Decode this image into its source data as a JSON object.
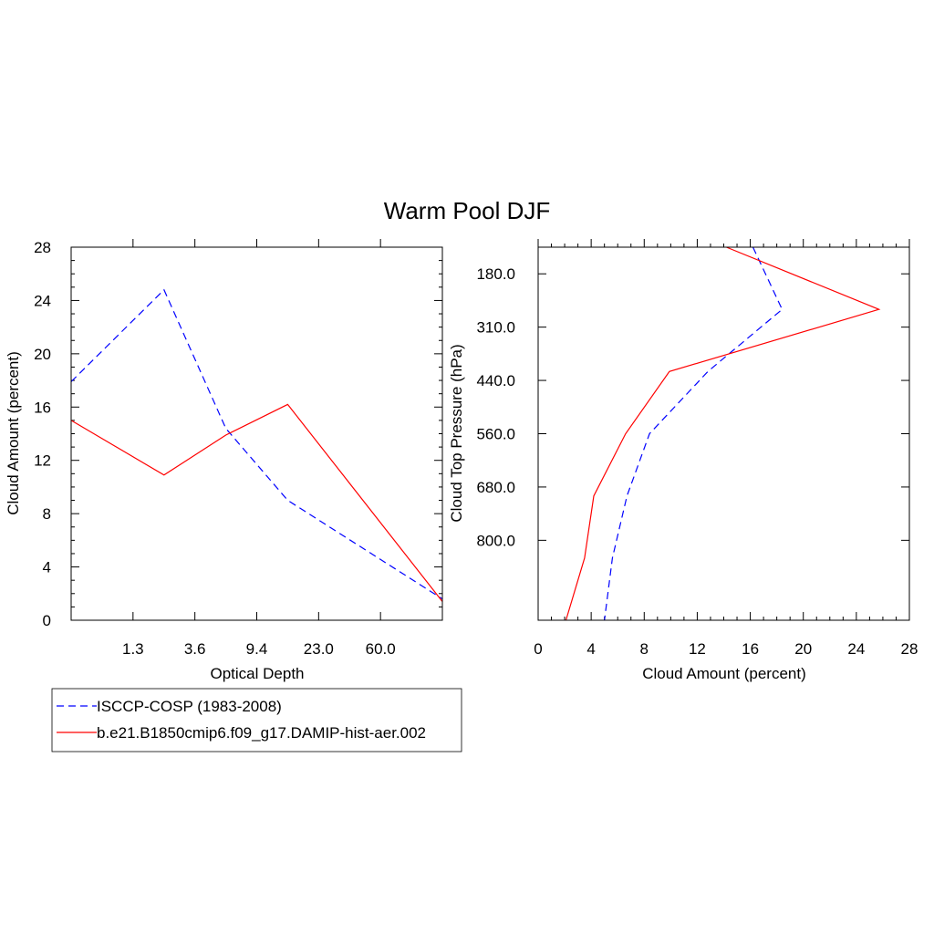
{
  "title": "Warm Pool DJF",
  "chart_data": [
    {
      "type": "line",
      "panel": "optical-depth",
      "xlabel": "Optical Depth",
      "ylabel": "Cloud Amount (percent)",
      "x_tick_labels": [
        "1.3",
        "3.6",
        "9.4",
        "23.0",
        "60.0"
      ],
      "y_ticks": [
        0,
        4,
        8,
        12,
        16,
        20,
        24,
        28
      ],
      "ylim": [
        0,
        28
      ],
      "x_points": [
        0.3,
        1.3,
        3.6,
        9.4,
        23.0,
        60.0,
        379
      ],
      "series": [
        {
          "name": "ISCCP-COSP (1983-2008)",
          "color": "#0000ff",
          "style": "dashed",
          "values": [
            17.9,
            24.8,
            14.4,
            9.0,
            1.6
          ]
        },
        {
          "name": "b.e21.B1850cmip6.f09_g17.DAMIP-hist-aer.002",
          "color": "#ff0000",
          "style": "solid",
          "values": [
            15.0,
            10.9,
            13.9,
            16.2,
            1.4
          ]
        }
      ]
    },
    {
      "type": "line",
      "panel": "cloud-top-pressure",
      "xlabel": "Cloud Amount (percent)",
      "ylabel": "Cloud Top Pressure (hPa)",
      "x_ticks": [
        0,
        4,
        8,
        12,
        16,
        20,
        24,
        28
      ],
      "xlim": [
        0,
        28
      ],
      "y_tick_labels": [
        "180.0",
        "310.0",
        "440.0",
        "560.0",
        "680.0",
        "800.0"
      ],
      "series": [
        {
          "name": "ISCCP-COSP (1983-2008)",
          "color": "#0000ff",
          "style": "dashed",
          "values": [
            16.2,
            18.4,
            12.8,
            8.4,
            6.7,
            5.6,
            5.0
          ]
        },
        {
          "name": "b.e21.B1850cmip6.f09_g17.DAMIP-hist-aer.002",
          "color": "#ff0000",
          "style": "solid",
          "values": [
            14.2,
            25.7,
            9.9,
            6.6,
            4.2,
            3.5,
            2.1
          ]
        }
      ]
    }
  ],
  "legend": [
    {
      "label": "ISCCP-COSP (1983-2008)",
      "color": "#0000ff",
      "style": "dashed"
    },
    {
      "label": "b.e21.B1850cmip6.f09_g17.DAMIP-hist-aer.002",
      "color": "#ff0000",
      "style": "solid"
    }
  ]
}
